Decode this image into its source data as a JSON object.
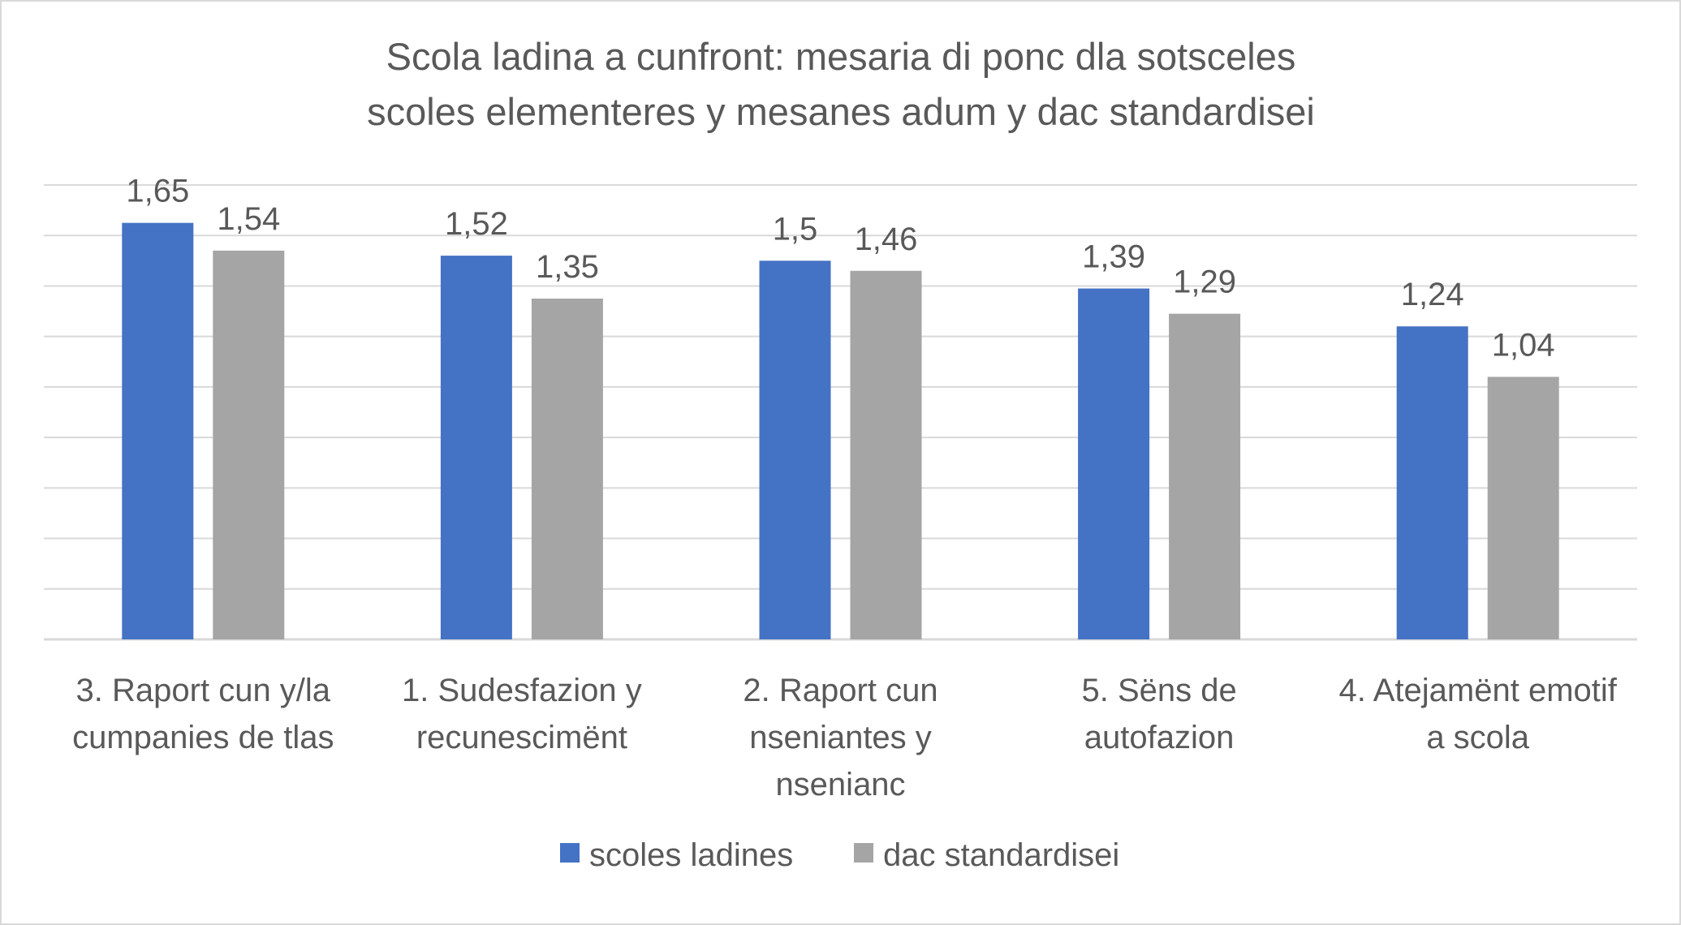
{
  "chart_data": {
    "type": "bar",
    "title": [
      "Scola ladina a cunfront: mesaria di ponc dla sotsceles",
      "scoles elementeres y mesanes adum y dac standardisei"
    ],
    "categories": [
      [
        "3. Raport cun y/la",
        "cumpanies de tlas"
      ],
      [
        "1. Sudesfazion y",
        "recunescimënt"
      ],
      [
        "2. Raport cun",
        "nseniantes y",
        "nsenianc"
      ],
      [
        "5. Sëns de",
        "autofazion"
      ],
      [
        "4. Atejamënt emotif",
        "a scola"
      ]
    ],
    "series": [
      {
        "name": "scoles ladines",
        "color": "#4472c4",
        "values": [
          1.65,
          1.52,
          1.5,
          1.39,
          1.24
        ],
        "labels": [
          "1,65",
          "1,52",
          "1,5",
          "1,39",
          "1,24"
        ]
      },
      {
        "name": "dac standardisei",
        "color": "#a5a5a5",
        "values": [
          1.54,
          1.35,
          1.46,
          1.29,
          1.04
        ],
        "labels": [
          "1,54",
          "1,35",
          "1,46",
          "1,29",
          "1,04"
        ]
      }
    ],
    "ylim": [
      0,
      1.8
    ],
    "gridline_step": 0.2,
    "grid": true,
    "legend_position": "bottom",
    "xlabel": "",
    "ylabel": ""
  }
}
